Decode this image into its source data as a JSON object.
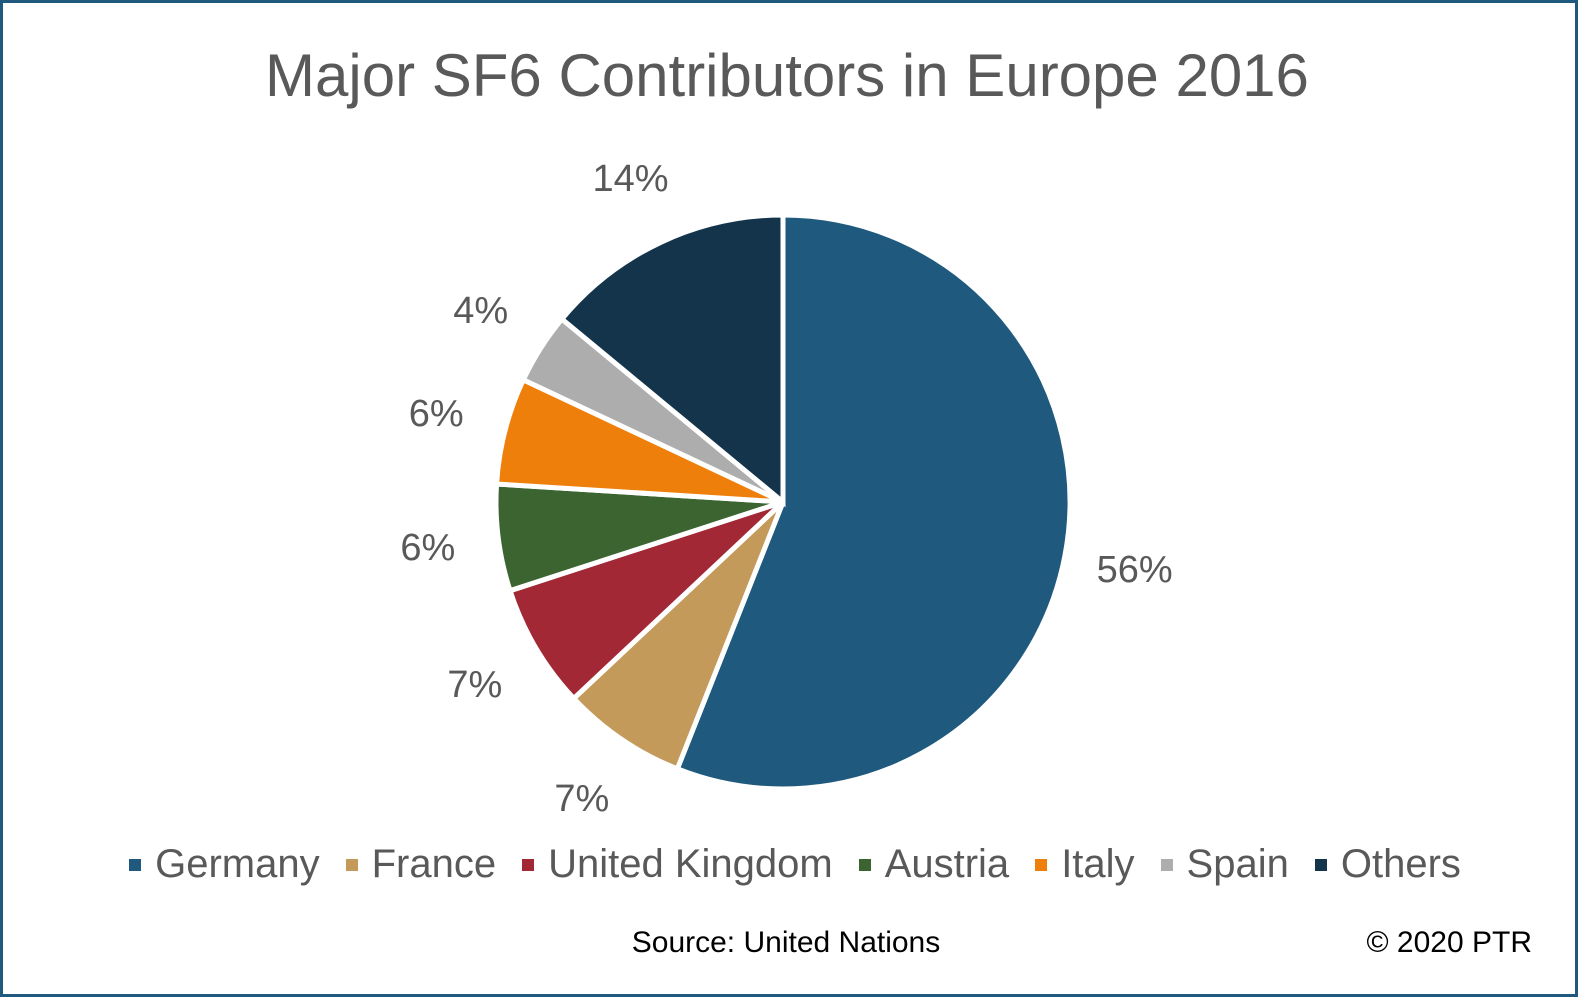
{
  "chart_data": {
    "type": "pie",
    "title": "Major SF6 Contributors in Europe 2016",
    "categories": [
      "Germany",
      "France",
      "United Kingdom",
      "Austria",
      "Italy",
      "Spain",
      "Others"
    ],
    "values": [
      56,
      7,
      7,
      6,
      6,
      4,
      14
    ],
    "data_labels": [
      "56%",
      "7%",
      "7%",
      "6%",
      "6%",
      "4%",
      "14%"
    ],
    "colors": [
      "#1F5A7E",
      "#C49A5A",
      "#A12834",
      "#3B6430",
      "#EF7F0B",
      "#ADADAD",
      "#13344B"
    ],
    "legend_position": "bottom",
    "start_angle": "top, clockwise"
  },
  "footer": {
    "source": "Source: United Nations",
    "copyright": "© 2020 PTR"
  }
}
